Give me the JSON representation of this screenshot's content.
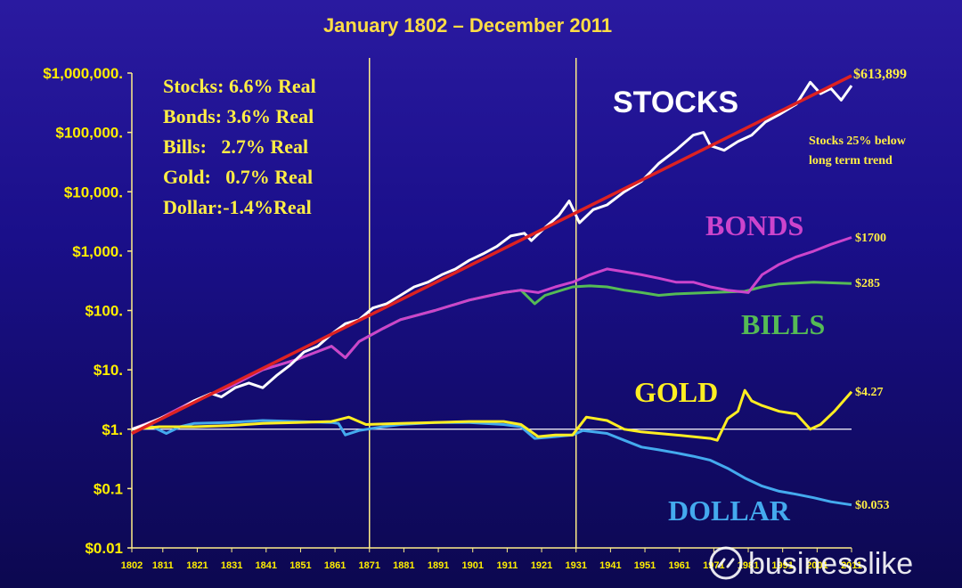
{
  "chart_data": {
    "type": "line",
    "title": "January 1802 – December 2011",
    "y_scale": "log",
    "ylim": [
      0.01,
      1000000
    ],
    "xlim": [
      1802,
      2011
    ],
    "y_ticks": [
      {
        "value": 1000000,
        "label": "$1,000,000."
      },
      {
        "value": 100000,
        "label": "$100,000."
      },
      {
        "value": 10000,
        "label": "$10,000."
      },
      {
        "value": 1000,
        "label": "$1,000."
      },
      {
        "value": 100,
        "label": "$100."
      },
      {
        "value": 10,
        "label": "$10."
      },
      {
        "value": 1,
        "label": "$1."
      },
      {
        "value": 0.1,
        "label": "$0.1"
      },
      {
        "value": 0.01,
        "label": "$0.01"
      }
    ],
    "x_ticks": [
      "1802",
      "1811",
      "1821",
      "1831",
      "1841",
      "1851",
      "1861",
      "1871",
      "1881",
      "1891",
      "1901",
      "1911",
      "1921",
      "1931",
      "1941",
      "1951",
      "1961",
      "1971",
      "1981",
      "1991",
      "2001",
      "2011"
    ],
    "vertical_lines": [
      1871,
      1931
    ],
    "baseline_value": 1,
    "grid": false,
    "legend": "none",
    "real_returns": [
      "Stocks: 6.6% Real",
      "Bonds: 3.6% Real",
      "Bills:   2.7% Real",
      "Gold:   0.7% Real",
      "Dollar:-1.4%Real"
    ],
    "annotation": [
      "Stocks 25% below",
      "long term trend"
    ],
    "series": [
      {
        "name": "STOCKS",
        "end_label": "$613,899",
        "color": "#ffffff",
        "points": [
          [
            1802,
            1
          ],
          [
            1806,
            1.2
          ],
          [
            1810,
            1.5
          ],
          [
            1815,
            2
          ],
          [
            1820,
            3
          ],
          [
            1825,
            4
          ],
          [
            1828,
            3.5
          ],
          [
            1832,
            5
          ],
          [
            1836,
            6
          ],
          [
            1840,
            5
          ],
          [
            1844,
            8
          ],
          [
            1848,
            12
          ],
          [
            1852,
            20
          ],
          [
            1856,
            25
          ],
          [
            1860,
            40
          ],
          [
            1864,
            60
          ],
          [
            1868,
            70
          ],
          [
            1872,
            110
          ],
          [
            1876,
            130
          ],
          [
            1880,
            180
          ],
          [
            1884,
            250
          ],
          [
            1888,
            300
          ],
          [
            1892,
            400
          ],
          [
            1896,
            500
          ],
          [
            1900,
            700
          ],
          [
            1904,
            900
          ],
          [
            1908,
            1200
          ],
          [
            1912,
            1800
          ],
          [
            1916,
            2000
          ],
          [
            1918,
            1500
          ],
          [
            1922,
            2500
          ],
          [
            1926,
            4000
          ],
          [
            1929,
            7000
          ],
          [
            1932,
            3000
          ],
          [
            1936,
            5000
          ],
          [
            1940,
            6000
          ],
          [
            1945,
            10000
          ],
          [
            1950,
            15000
          ],
          [
            1955,
            30000
          ],
          [
            1960,
            50000
          ],
          [
            1965,
            90000
          ],
          [
            1968,
            100000
          ],
          [
            1970,
            60000
          ],
          [
            1974,
            50000
          ],
          [
            1978,
            70000
          ],
          [
            1982,
            90000
          ],
          [
            1986,
            150000
          ],
          [
            1990,
            200000
          ],
          [
            1995,
            300000
          ],
          [
            1999,
            700000
          ],
          [
            2002,
            450000
          ],
          [
            2005,
            550000
          ],
          [
            2008,
            350000
          ],
          [
            2011,
            613899
          ]
        ]
      },
      {
        "name": "Trend",
        "color": "#dd2222",
        "points": [
          [
            1802,
            0.85
          ],
          [
            2011,
            900000
          ]
        ]
      },
      {
        "name": "BONDS",
        "end_label": "$1700",
        "color": "#cc44cc",
        "points": [
          [
            1802,
            1
          ],
          [
            1810,
            1.5
          ],
          [
            1820,
            3
          ],
          [
            1830,
            5
          ],
          [
            1840,
            10
          ],
          [
            1850,
            15
          ],
          [
            1860,
            25
          ],
          [
            1864,
            16
          ],
          [
            1868,
            30
          ],
          [
            1875,
            50
          ],
          [
            1880,
            70
          ],
          [
            1890,
            100
          ],
          [
            1900,
            150
          ],
          [
            1910,
            200
          ],
          [
            1915,
            220
          ],
          [
            1920,
            200
          ],
          [
            1925,
            250
          ],
          [
            1930,
            300
          ],
          [
            1935,
            400
          ],
          [
            1940,
            500
          ],
          [
            1945,
            450
          ],
          [
            1950,
            400
          ],
          [
            1955,
            350
          ],
          [
            1960,
            300
          ],
          [
            1965,
            300
          ],
          [
            1970,
            250
          ],
          [
            1975,
            220
          ],
          [
            1981,
            200
          ],
          [
            1985,
            400
          ],
          [
            1990,
            600
          ],
          [
            1995,
            800
          ],
          [
            2000,
            1000
          ],
          [
            2005,
            1300
          ],
          [
            2011,
            1700
          ]
        ]
      },
      {
        "name": "BILLS",
        "end_label": "$285",
        "color": "#55bb55",
        "points": [
          [
            1802,
            1
          ],
          [
            1810,
            1.5
          ],
          [
            1820,
            3
          ],
          [
            1830,
            5
          ],
          [
            1840,
            10
          ],
          [
            1850,
            15
          ],
          [
            1860,
            25
          ],
          [
            1864,
            16
          ],
          [
            1868,
            30
          ],
          [
            1875,
            50
          ],
          [
            1880,
            70
          ],
          [
            1890,
            100
          ],
          [
            1900,
            150
          ],
          [
            1910,
            200
          ],
          [
            1915,
            220
          ],
          [
            1919,
            130
          ],
          [
            1922,
            180
          ],
          [
            1930,
            250
          ],
          [
            1935,
            260
          ],
          [
            1940,
            250
          ],
          [
            1945,
            220
          ],
          [
            1950,
            200
          ],
          [
            1955,
            180
          ],
          [
            1960,
            190
          ],
          [
            1970,
            200
          ],
          [
            1980,
            210
          ],
          [
            1985,
            250
          ],
          [
            1990,
            280
          ],
          [
            2000,
            300
          ],
          [
            2011,
            285
          ]
        ]
      },
      {
        "name": "GOLD",
        "end_label": "$4.27",
        "color": "#ffee22",
        "points": [
          [
            1802,
            1
          ],
          [
            1810,
            1.1
          ],
          [
            1820,
            1.1
          ],
          [
            1830,
            1.15
          ],
          [
            1840,
            1.25
          ],
          [
            1850,
            1.3
          ],
          [
            1860,
            1.35
          ],
          [
            1865,
            1.6
          ],
          [
            1870,
            1.2
          ],
          [
            1880,
            1.25
          ],
          [
            1890,
            1.3
          ],
          [
            1900,
            1.35
          ],
          [
            1910,
            1.35
          ],
          [
            1915,
            1.2
          ],
          [
            1920,
            0.75
          ],
          [
            1925,
            0.8
          ],
          [
            1930,
            0.8
          ],
          [
            1934,
            1.6
          ],
          [
            1940,
            1.4
          ],
          [
            1945,
            1
          ],
          [
            1950,
            0.9
          ],
          [
            1960,
            0.8
          ],
          [
            1970,
            0.7
          ],
          [
            1972,
            0.65
          ],
          [
            1975,
            1.5
          ],
          [
            1978,
            2
          ],
          [
            1980,
            4.5
          ],
          [
            1982,
            3
          ],
          [
            1985,
            2.5
          ],
          [
            1990,
            2
          ],
          [
            1995,
            1.8
          ],
          [
            1999,
            1
          ],
          [
            2002,
            1.2
          ],
          [
            2006,
            2
          ],
          [
            2011,
            4.27
          ]
        ]
      },
      {
        "name": "DOLLAR",
        "end_label": "$0.053",
        "color": "#44aaee",
        "points": [
          [
            1802,
            1
          ],
          [
            1808,
            1.1
          ],
          [
            1812,
            0.85
          ],
          [
            1816,
            1.1
          ],
          [
            1820,
            1.25
          ],
          [
            1830,
            1.3
          ],
          [
            1840,
            1.4
          ],
          [
            1850,
            1.35
          ],
          [
            1860,
            1.3
          ],
          [
            1862,
            1.25
          ],
          [
            1864,
            0.8
          ],
          [
            1868,
            0.95
          ],
          [
            1875,
            1.1
          ],
          [
            1880,
            1.2
          ],
          [
            1890,
            1.3
          ],
          [
            1900,
            1.3
          ],
          [
            1910,
            1.2
          ],
          [
            1915,
            1.1
          ],
          [
            1919,
            0.7
          ],
          [
            1925,
            0.75
          ],
          [
            1930,
            0.8
          ],
          [
            1933,
            0.95
          ],
          [
            1940,
            0.85
          ],
          [
            1945,
            0.65
          ],
          [
            1950,
            0.5
          ],
          [
            1955,
            0.45
          ],
          [
            1960,
            0.4
          ],
          [
            1965,
            0.35
          ],
          [
            1970,
            0.3
          ],
          [
            1975,
            0.22
          ],
          [
            1980,
            0.15
          ],
          [
            1985,
            0.11
          ],
          [
            1990,
            0.09
          ],
          [
            1995,
            0.08
          ],
          [
            2000,
            0.07
          ],
          [
            2005,
            0.06
          ],
          [
            2011,
            0.053
          ]
        ]
      }
    ]
  },
  "watermark": {
    "text": "businesslike",
    "icon": "link-icon"
  },
  "colors": {
    "background": "#1a0f8a",
    "title": "#ffdd44",
    "axis_labels": "#ffee00",
    "guide_lines": "#ffee88"
  }
}
